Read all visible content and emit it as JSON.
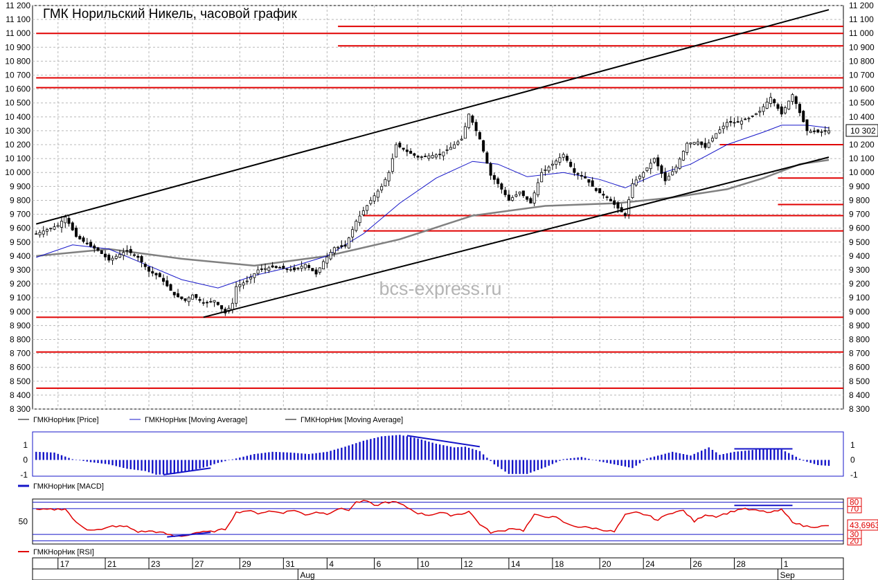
{
  "chart_data": [
    {
      "type": "candlestick",
      "title": "ГМК Норильский Никель, часовой график",
      "watermark": "bcs-express.ru",
      "ylim": [
        8300,
        11200
      ],
      "yticks": [
        8300,
        8400,
        8500,
        8600,
        8700,
        8800,
        8900,
        9000,
        9100,
        9200,
        9300,
        9400,
        9500,
        9600,
        9700,
        9800,
        9900,
        10000,
        10100,
        10200,
        10300,
        10400,
        10500,
        10600,
        10700,
        10800,
        10900,
        11000,
        11100,
        11200
      ],
      "ytick_labels": [
        "8 300",
        "8 400",
        "8 500",
        "8 600",
        "8 700",
        "8 800",
        "8 900",
        "9 000",
        "9 100",
        "9 200",
        "9 300",
        "9 400",
        "9 500",
        "9 600",
        "9 700",
        "9 800",
        "9 900",
        "10 000",
        "10 100",
        "10 200",
        "10 300",
        "10 400",
        "10 500",
        "10 600",
        "10 700",
        "10 800",
        "10 900",
        "11 000",
        "11 100",
        "11 200"
      ],
      "last_price_label": "10 302",
      "grid": true,
      "legend_position": "bottom-left",
      "legend": [
        "ГМКНорНик [Price]",
        "ГМКНорНик [Moving Average]",
        "ГМКНорНик [Moving Average]"
      ],
      "colors": {
        "price": "#000000",
        "ma_fast": "#1414c8",
        "ma_slow": "#808080",
        "levels": "#e00000",
        "trend": "#000000"
      },
      "price_path": [
        [
          0,
          9560
        ],
        [
          3,
          9590
        ],
        [
          6,
          9620
        ],
        [
          8,
          9680
        ],
        [
          11,
          9540
        ],
        [
          15,
          9470
        ],
        [
          17,
          9440
        ],
        [
          20,
          9370
        ],
        [
          25,
          9440
        ],
        [
          28,
          9390
        ],
        [
          31,
          9290
        ],
        [
          34,
          9250
        ],
        [
          38,
          9120
        ],
        [
          41,
          9080
        ],
        [
          43,
          9120
        ],
        [
          46,
          9060
        ],
        [
          49,
          9080
        ],
        [
          52,
          8990
        ],
        [
          54,
          9060
        ],
        [
          55,
          9180
        ],
        [
          58,
          9220
        ],
        [
          61,
          9300
        ],
        [
          65,
          9320
        ],
        [
          68,
          9310
        ],
        [
          71,
          9300
        ],
        [
          74,
          9340
        ],
        [
          77,
          9270
        ],
        [
          79,
          9360
        ],
        [
          82,
          9460
        ],
        [
          85,
          9470
        ],
        [
          88,
          9650
        ],
        [
          92,
          9800
        ],
        [
          95,
          9900
        ],
        [
          97,
          10000
        ],
        [
          99,
          10200
        ],
        [
          102,
          10150
        ],
        [
          105,
          10110
        ],
        [
          108,
          10120
        ],
        [
          111,
          10130
        ],
        [
          114,
          10180
        ],
        [
          117,
          10240
        ],
        [
          119,
          10420
        ],
        [
          122,
          10240
        ],
        [
          125,
          9980
        ],
        [
          127,
          9920
        ],
        [
          130,
          9800
        ],
        [
          133,
          9860
        ],
        [
          136,
          9780
        ],
        [
          139,
          10000
        ],
        [
          142,
          10060
        ],
        [
          145,
          10130
        ],
        [
          148,
          10000
        ],
        [
          151,
          9960
        ],
        [
          154,
          9870
        ],
        [
          157,
          9820
        ],
        [
          159,
          9770
        ],
        [
          162,
          9690
        ],
        [
          164,
          9920
        ],
        [
          167,
          10000
        ],
        [
          170,
          10100
        ],
        [
          173,
          9940
        ],
        [
          176,
          10040
        ],
        [
          179,
          10210
        ],
        [
          182,
          10220
        ],
        [
          184,
          10180
        ],
        [
          187,
          10280
        ],
        [
          190,
          10360
        ],
        [
          193,
          10360
        ],
        [
          196,
          10390
        ],
        [
          199,
          10440
        ],
        [
          202,
          10540
        ],
        [
          205,
          10420
        ],
        [
          208,
          10560
        ],
        [
          210,
          10430
        ],
        [
          212,
          10300
        ],
        [
          215,
          10290
        ],
        [
          218,
          10300
        ]
      ],
      "ma_fast": [
        [
          0,
          9390
        ],
        [
          10,
          9480
        ],
        [
          20,
          9450
        ],
        [
          30,
          9340
        ],
        [
          40,
          9230
        ],
        [
          50,
          9170
        ],
        [
          60,
          9260
        ],
        [
          70,
          9320
        ],
        [
          80,
          9400
        ],
        [
          90,
          9560
        ],
        [
          100,
          9780
        ],
        [
          110,
          9960
        ],
        [
          120,
          10080
        ],
        [
          127,
          10060
        ],
        [
          135,
          9970
        ],
        [
          145,
          10000
        ],
        [
          155,
          9950
        ],
        [
          162,
          9890
        ],
        [
          170,
          9980
        ],
        [
          180,
          10060
        ],
        [
          190,
          10200
        ],
        [
          200,
          10290
        ],
        [
          205,
          10340
        ],
        [
          212,
          10340
        ],
        [
          218,
          10320
        ]
      ],
      "ma_slow": [
        [
          0,
          9400
        ],
        [
          20,
          9450
        ],
        [
          40,
          9380
        ],
        [
          60,
          9330
        ],
        [
          80,
          9400
        ],
        [
          100,
          9520
        ],
        [
          120,
          9690
        ],
        [
          140,
          9760
        ],
        [
          160,
          9780
        ],
        [
          175,
          9820
        ],
        [
          190,
          9880
        ],
        [
          200,
          9960
        ],
        [
          210,
          10060
        ],
        [
          218,
          10090
        ]
      ],
      "trend_lines": [
        {
          "from": [
            0,
            9630
          ],
          "to": [
            218,
            11170
          ]
        },
        {
          "from": [
            46,
            8960
          ],
          "to": [
            218,
            10110
          ]
        }
      ],
      "levels": [
        {
          "y": 11050,
          "x_start": 83
        },
        {
          "y": 11000,
          "x_start": 0
        },
        {
          "y": 10910,
          "x_start": 83
        },
        {
          "y": 10680,
          "x_start": 0
        },
        {
          "y": 10610,
          "x_start": 0
        },
        {
          "y": 10200,
          "x_start": 188
        },
        {
          "y": 9960,
          "x_start": 204
        },
        {
          "y": 9770,
          "x_start": 204
        },
        {
          "y": 9690,
          "x_start": 90
        },
        {
          "y": 9580,
          "x_start": 90
        },
        {
          "y": 8960,
          "x_start": 0
        },
        {
          "y": 8710,
          "x_start": 0
        },
        {
          "y": 8450,
          "x_start": 0
        }
      ]
    },
    {
      "type": "bar",
      "legend": [
        "ГМКНорНик [MACD]"
      ],
      "ylim": [
        -1.1,
        1.9
      ],
      "yticks": [
        -1,
        0,
        1
      ],
      "ytick_labels": [
        "-1",
        "0",
        "1"
      ],
      "values_path": [
        [
          0,
          0.55
        ],
        [
          5,
          0.5
        ],
        [
          10,
          0.05
        ],
        [
          15,
          -0.15
        ],
        [
          20,
          -0.3
        ],
        [
          25,
          -0.6
        ],
        [
          30,
          -0.75
        ],
        [
          33,
          -1.0
        ],
        [
          38,
          -0.95
        ],
        [
          43,
          -0.7
        ],
        [
          47,
          -0.45
        ],
        [
          50,
          -0.2
        ],
        [
          55,
          0.1
        ],
        [
          60,
          0.4
        ],
        [
          65,
          0.55
        ],
        [
          70,
          0.5
        ],
        [
          75,
          0.4
        ],
        [
          80,
          0.55
        ],
        [
          85,
          0.9
        ],
        [
          90,
          1.3
        ],
        [
          95,
          1.6
        ],
        [
          100,
          1.7
        ],
        [
          105,
          1.45
        ],
        [
          110,
          1.1
        ],
        [
          115,
          0.85
        ],
        [
          118,
          0.9
        ],
        [
          122,
          0.6
        ],
        [
          126,
          -0.3
        ],
        [
          130,
          -0.95
        ],
        [
          135,
          -0.95
        ],
        [
          140,
          -0.5
        ],
        [
          145,
          0.05
        ],
        [
          150,
          0.2
        ],
        [
          155,
          -0.1
        ],
        [
          160,
          -0.35
        ],
        [
          164,
          -0.55
        ],
        [
          168,
          0.1
        ],
        [
          175,
          0.55
        ],
        [
          180,
          0.3
        ],
        [
          185,
          0.85
        ],
        [
          188,
          0.35
        ],
        [
          192,
          0.55
        ],
        [
          200,
          0.75
        ],
        [
          205,
          0.7
        ],
        [
          208,
          0.35
        ],
        [
          211,
          -0.05
        ],
        [
          215,
          -0.35
        ],
        [
          218,
          -0.4
        ]
      ],
      "divergence_lines": [
        {
          "from": [
            35,
            -1.0
          ],
          "to": [
            48,
            -0.55
          ]
        },
        {
          "from": [
            102,
            1.65
          ],
          "to": [
            122,
            0.9
          ]
        },
        {
          "from": [
            192,
            0.75
          ],
          "to": [
            208,
            0.75
          ]
        }
      ],
      "colors": {
        "bars": "#1414c8",
        "divergence": "#1414c8"
      }
    },
    {
      "type": "line",
      "legend": [
        "ГМКНорНик [RSI]"
      ],
      "ylim": [
        15,
        85
      ],
      "yticks": [
        20,
        30,
        50,
        70,
        80
      ],
      "ytick_labels": [
        "20",
        "30",
        "50",
        "70",
        "80"
      ],
      "levels": [
        20,
        30,
        70,
        80
      ],
      "last_value_label": "43,6963",
      "values_path": [
        [
          0,
          68
        ],
        [
          6,
          69
        ],
        [
          8,
          70
        ],
        [
          11,
          48
        ],
        [
          14,
          38
        ],
        [
          18,
          37
        ],
        [
          21,
          43
        ],
        [
          25,
          42
        ],
        [
          28,
          34
        ],
        [
          32,
          35
        ],
        [
          35,
          32
        ],
        [
          38,
          27
        ],
        [
          41,
          28
        ],
        [
          44,
          33
        ],
        [
          48,
          34
        ],
        [
          52,
          38
        ],
        [
          55,
          64
        ],
        [
          58,
          67
        ],
        [
          61,
          63
        ],
        [
          64,
          66
        ],
        [
          68,
          64
        ],
        [
          71,
          68
        ],
        [
          74,
          60
        ],
        [
          77,
          65
        ],
        [
          80,
          62
        ],
        [
          83,
          70
        ],
        [
          86,
          68
        ],
        [
          88,
          80
        ],
        [
          91,
          82
        ],
        [
          93,
          74
        ],
        [
          96,
          80
        ],
        [
          99,
          80
        ],
        [
          102,
          72
        ],
        [
          105,
          63
        ],
        [
          108,
          60
        ],
        [
          111,
          64
        ],
        [
          114,
          60
        ],
        [
          117,
          62
        ],
        [
          119,
          66
        ],
        [
          122,
          46
        ],
        [
          125,
          33
        ],
        [
          128,
          35
        ],
        [
          131,
          40
        ],
        [
          134,
          36
        ],
        [
          137,
          60
        ],
        [
          140,
          58
        ],
        [
          143,
          56
        ],
        [
          146,
          46
        ],
        [
          149,
          42
        ],
        [
          153,
          40
        ],
        [
          157,
          36
        ],
        [
          159,
          34
        ],
        [
          162,
          60
        ],
        [
          165,
          64
        ],
        [
          168,
          60
        ],
        [
          171,
          52
        ],
        [
          174,
          63
        ],
        [
          178,
          67
        ],
        [
          181,
          50
        ],
        [
          184,
          61
        ],
        [
          187,
          58
        ],
        [
          190,
          63
        ],
        [
          194,
          70
        ],
        [
          198,
          67
        ],
        [
          202,
          64
        ],
        [
          205,
          68
        ],
        [
          208,
          50
        ],
        [
          211,
          43
        ],
        [
          214,
          42
        ],
        [
          218,
          43
        ]
      ],
      "divergence_lines": [
        {
          "from": [
            36,
            26
          ],
          "to": [
            48,
            33
          ]
        },
        {
          "from": [
            192,
            75
          ],
          "to": [
            208,
            75
          ]
        }
      ],
      "colors": {
        "line": "#e00000",
        "levels": "#1414c8",
        "divergence": "#1414c8"
      }
    }
  ],
  "x_axis": {
    "ticks": [
      {
        "x": 6,
        "label": "17"
      },
      {
        "x": 19,
        "label": "21"
      },
      {
        "x": 31,
        "label": "23"
      },
      {
        "x": 43,
        "label": "27"
      },
      {
        "x": 56,
        "label": "29"
      },
      {
        "x": 68,
        "label": "31"
      },
      {
        "x": 80,
        "label": "4"
      },
      {
        "x": 93,
        "label": "6"
      },
      {
        "x": 105,
        "label": "10"
      },
      {
        "x": 117,
        "label": "12"
      },
      {
        "x": 130,
        "label": "14"
      },
      {
        "x": 142,
        "label": "18"
      },
      {
        "x": 155,
        "label": "20"
      },
      {
        "x": 167,
        "label": "24"
      },
      {
        "x": 180,
        "label": "26"
      },
      {
        "x": 192,
        "label": "28"
      },
      {
        "x": 205,
        "label": "1"
      }
    ],
    "months": [
      {
        "x": 72,
        "label": "Aug"
      },
      {
        "x": 204,
        "label": "Sep"
      }
    ],
    "range": [
      -1,
      222
    ]
  }
}
